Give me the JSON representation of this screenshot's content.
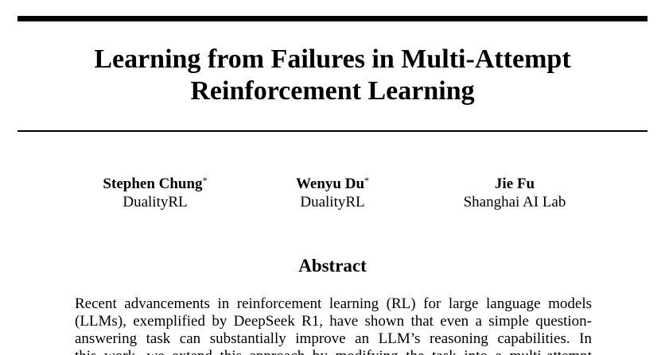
{
  "title": {
    "line1": "Learning from Failures in Multi-Attempt",
    "line2": "Reinforcement Learning"
  },
  "authors": [
    {
      "name": "Stephen Chung",
      "mark": "*",
      "affiliation": "DualityRL"
    },
    {
      "name": "Wenyu Du",
      "mark": "*",
      "affiliation": "DualityRL"
    },
    {
      "name": "Jie Fu",
      "mark": "",
      "affiliation": "Shanghai AI Lab"
    }
  ],
  "abstract": {
    "heading": "Abstract",
    "lines": [
      "Recent advancements in reinforcement learning (RL) for large language models",
      "(LLMs), exemplified by DeepSeek R1, have shown that even a simple question-",
      "answering task can substantially improve an LLM’s reasoning capabilities. In",
      "this work, we extend this approach by modifying the task into a multi-attempt"
    ]
  }
}
